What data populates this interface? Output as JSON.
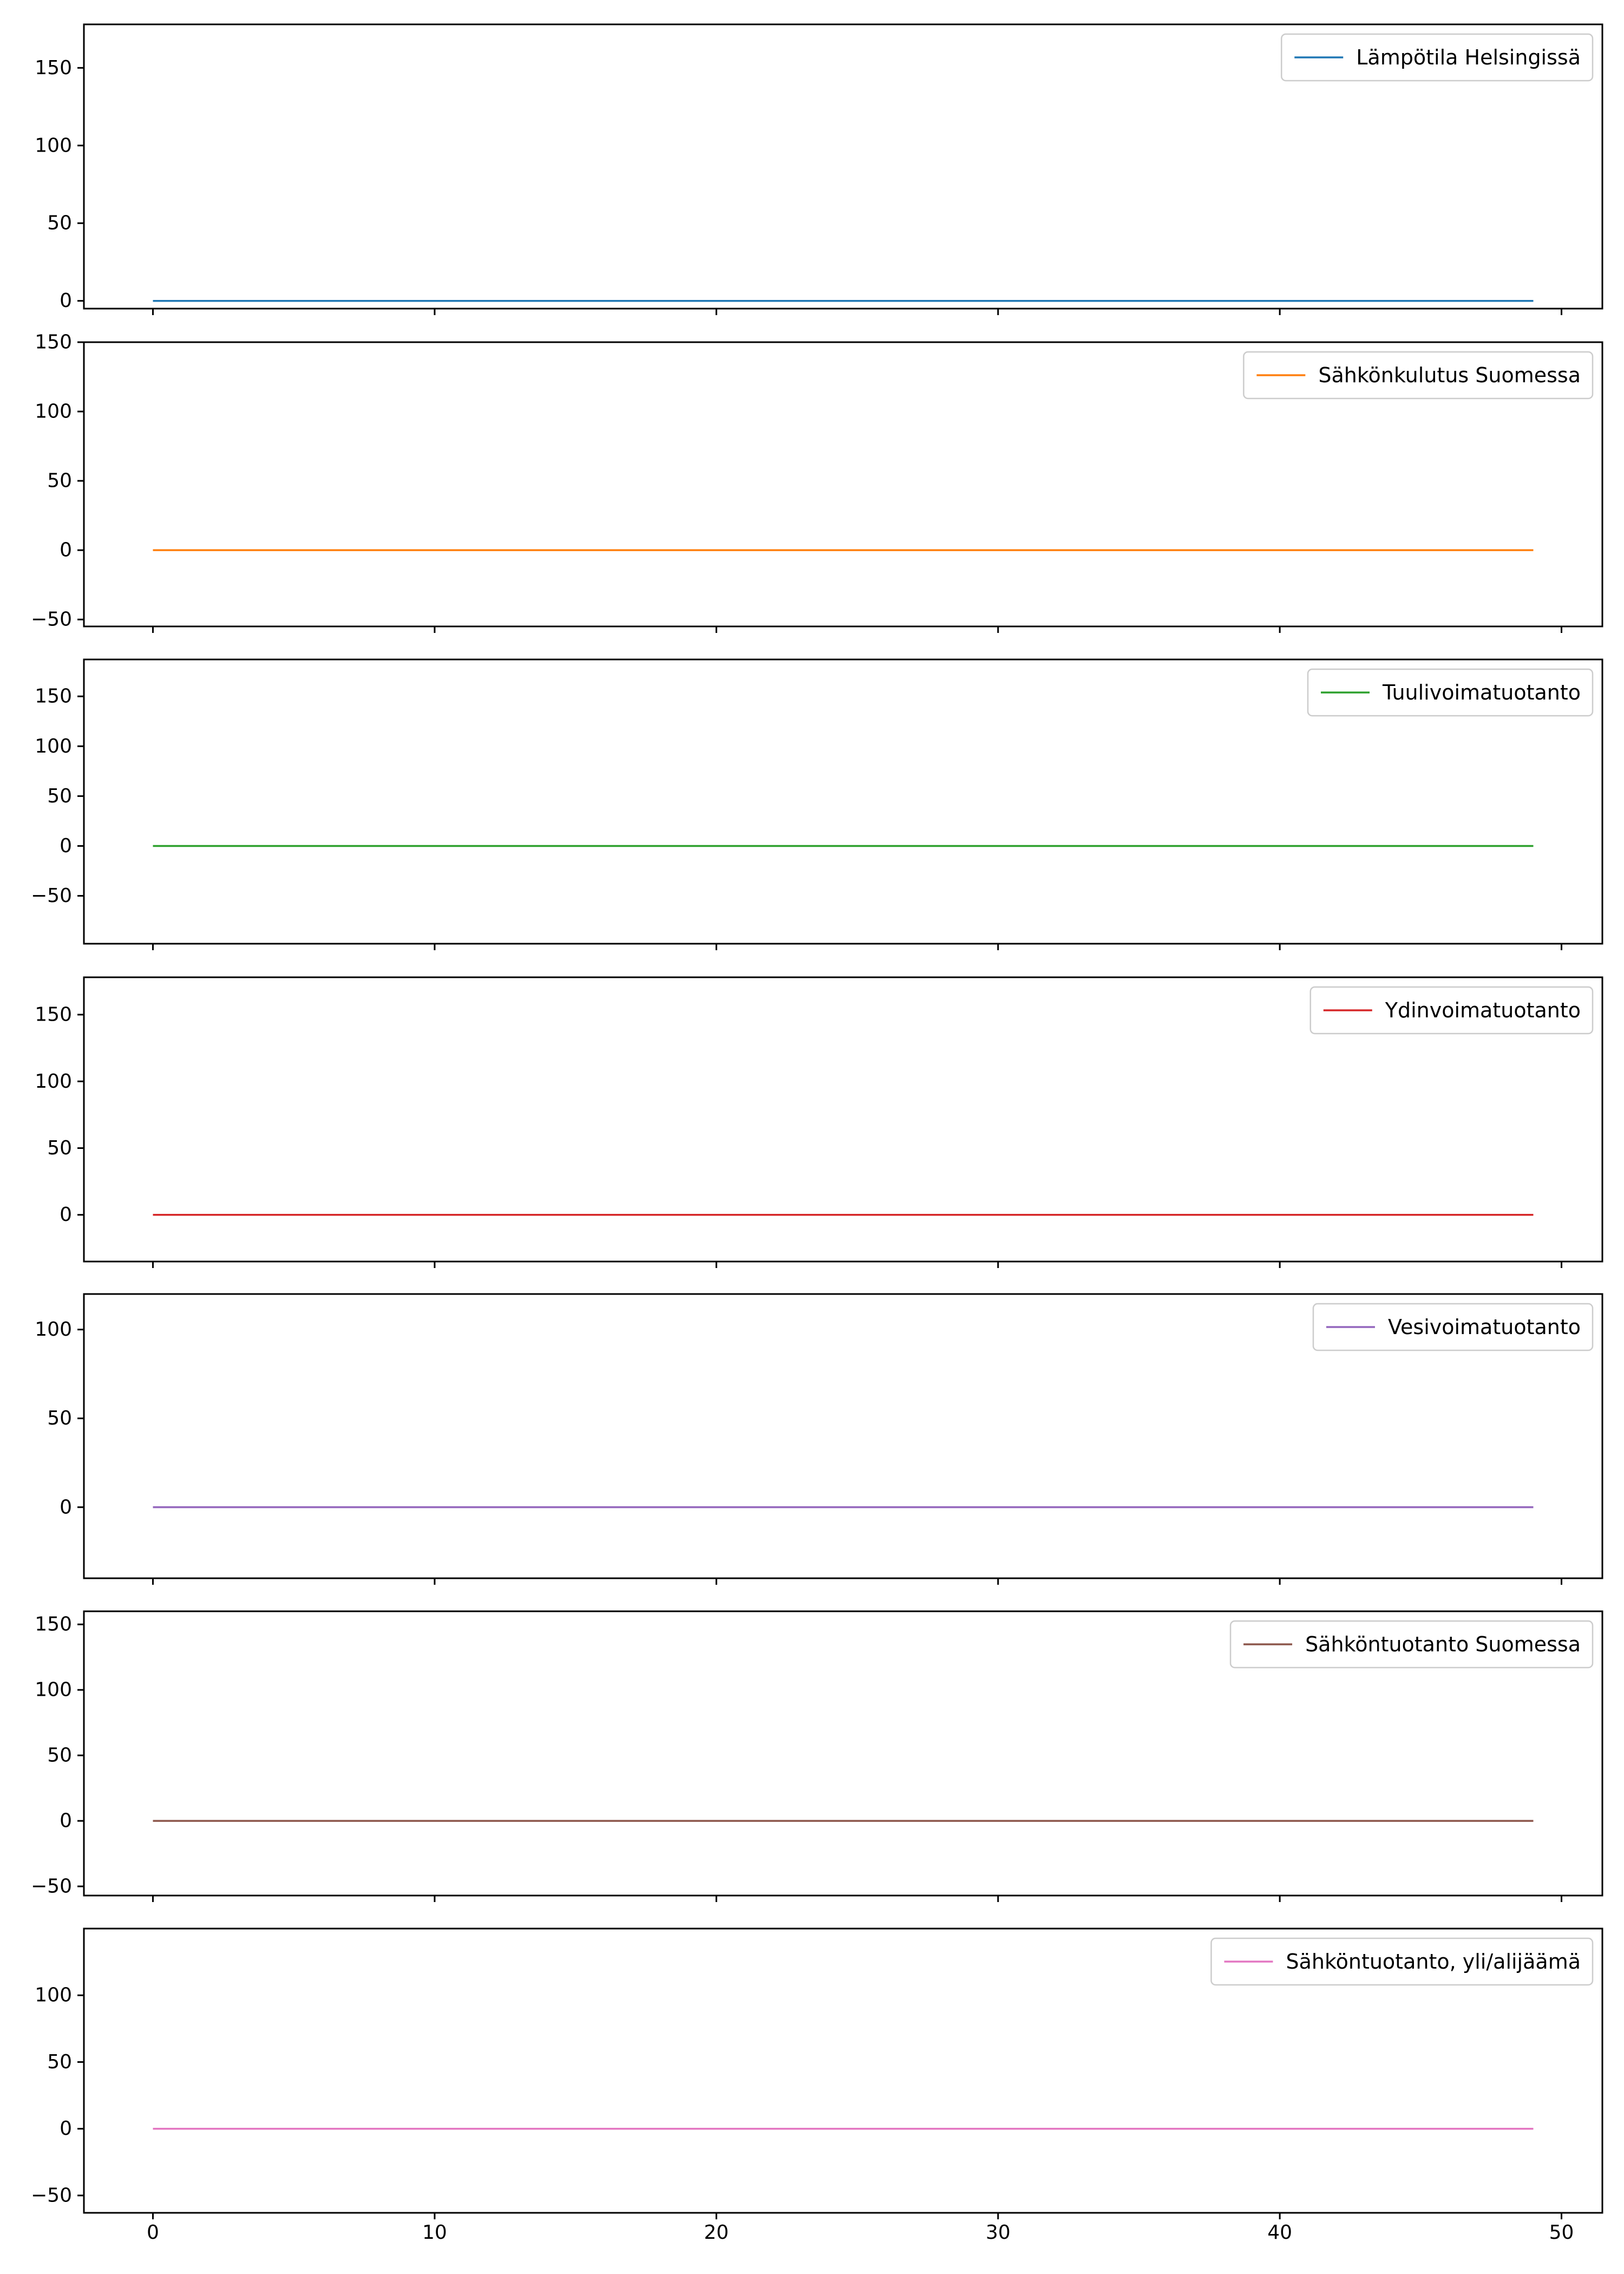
{
  "chart_data": {
    "type": "line",
    "x": {
      "start": 0,
      "end": 49,
      "lim": [
        -2.45,
        51.45
      ],
      "ticks": [
        0,
        10,
        20,
        30,
        40,
        50
      ]
    },
    "legend_position": "upper right",
    "grid": false,
    "shared_x": true,
    "series": [
      {
        "name": "Lämpötila Helsingissä",
        "color": "#1f77b4",
        "value": 0,
        "ylim": [
          -5,
          178
        ],
        "yticks": [
          0,
          50,
          100,
          150
        ]
      },
      {
        "name": "Sähkönkulutus Suomessa",
        "color": "#ff7f0e",
        "value": 0,
        "ylim": [
          -55,
          150
        ],
        "yticks": [
          -50,
          0,
          50,
          100,
          150
        ]
      },
      {
        "name": "Tuulivoimatuotanto",
        "color": "#2ca02c",
        "value": 0,
        "ylim": [
          -98,
          187
        ],
        "yticks": [
          -50,
          0,
          50,
          100,
          150
        ]
      },
      {
        "name": "Ydinvoimatuotanto",
        "color": "#d62728",
        "value": 0,
        "ylim": [
          -35,
          178
        ],
        "yticks": [
          0,
          50,
          100,
          150
        ]
      },
      {
        "name": "Vesivoimatuotanto",
        "color": "#9467bd",
        "value": 0,
        "ylim": [
          -40,
          120
        ],
        "yticks": [
          0,
          50,
          100
        ]
      },
      {
        "name": "Sähköntuotanto Suomessa",
        "color": "#8c564b",
        "value": 0,
        "ylim": [
          -57,
          160
        ],
        "yticks": [
          -50,
          0,
          50,
          100,
          150
        ]
      },
      {
        "name": "Sähköntuotanto, yli/alijäämä",
        "color": "#e377c2",
        "value": 0,
        "ylim": [
          -63,
          150
        ],
        "yticks": [
          -50,
          0,
          50,
          100
        ]
      }
    ]
  }
}
